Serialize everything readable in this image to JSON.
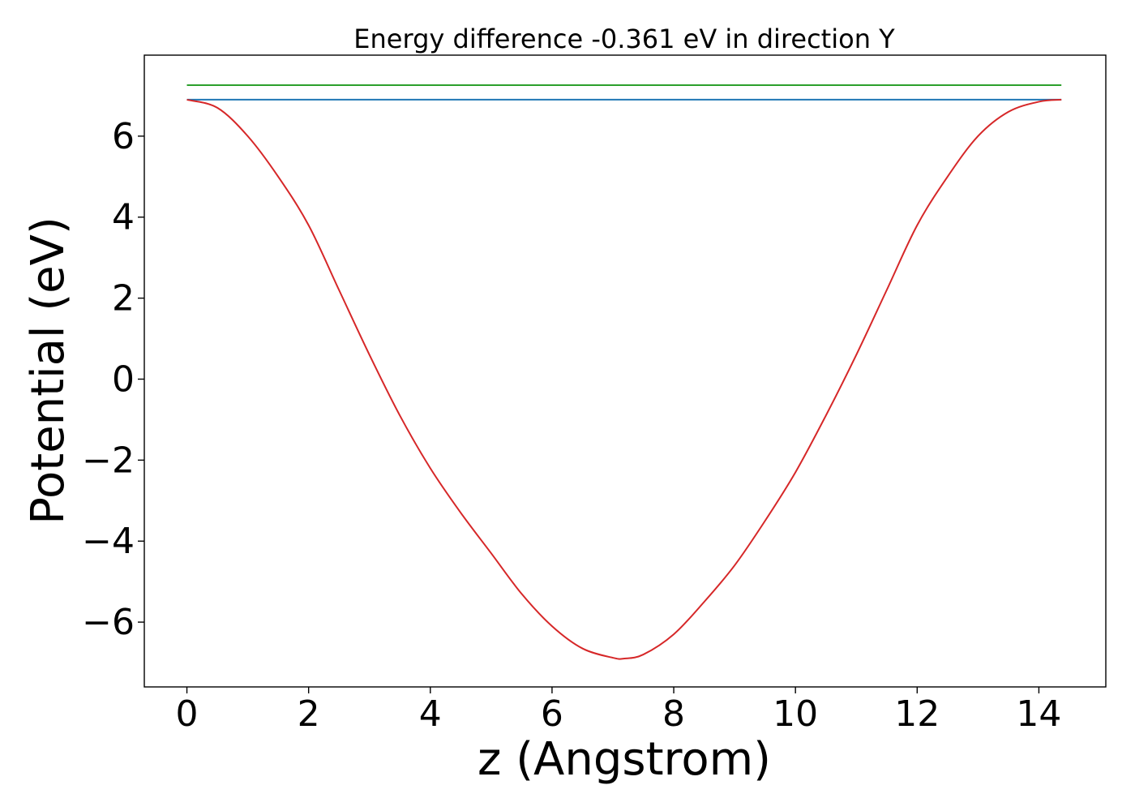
{
  "chart_data": {
    "type": "line",
    "title": "Energy difference -0.361 eV in direction Y",
    "xlabel": "z (Angstrom)",
    "ylabel": "Potential (eV)",
    "xlim": [
      -0.7,
      15.1
    ],
    "ylim": [
      -7.6,
      8.0
    ],
    "grid": false,
    "x_ticks": [
      {
        "value": 0,
        "label": "0"
      },
      {
        "value": 2,
        "label": "2"
      },
      {
        "value": 4,
        "label": "4"
      },
      {
        "value": 6,
        "label": "6"
      },
      {
        "value": 8,
        "label": "8"
      },
      {
        "value": 10,
        "label": "10"
      },
      {
        "value": 12,
        "label": "12"
      },
      {
        "value": 14,
        "label": "14"
      }
    ],
    "y_ticks": [
      {
        "value": 6,
        "label": "6"
      },
      {
        "value": 4,
        "label": "4"
      },
      {
        "value": 2,
        "label": "2"
      },
      {
        "value": 0,
        "label": "0"
      },
      {
        "value": -2,
        "label": "−2"
      },
      {
        "value": -4,
        "label": "−4"
      },
      {
        "value": -6,
        "label": "−6"
      }
    ],
    "series": [
      {
        "color": "#2ca02c",
        "x": [
          0,
          14.37
        ],
        "y": [
          7.26,
          7.26
        ]
      },
      {
        "color": "#1f77b4",
        "x": [
          0,
          14.37
        ],
        "y": [
          6.9,
          6.9
        ]
      },
      {
        "color": "#d62728",
        "x": [
          0,
          0.5,
          1.0,
          1.5,
          2.0,
          2.5,
          3.0,
          3.5,
          4.0,
          4.5,
          5.0,
          5.5,
          6.0,
          6.5,
          7.0,
          7.19,
          7.5,
          8.0,
          8.5,
          9.0,
          9.5,
          10.0,
          10.5,
          11.0,
          11.5,
          12.0,
          12.5,
          13.0,
          13.5,
          14.0,
          14.37
        ],
        "y": [
          6.9,
          6.7,
          6.0,
          5.0,
          3.8,
          2.2,
          0.6,
          -0.9,
          -2.2,
          -3.3,
          -4.3,
          -5.3,
          -6.1,
          -6.65,
          -6.88,
          -6.9,
          -6.8,
          -6.3,
          -5.5,
          -4.6,
          -3.5,
          -2.3,
          -0.9,
          0.6,
          2.2,
          3.8,
          5.0,
          6.0,
          6.6,
          6.85,
          6.9
        ]
      }
    ]
  }
}
